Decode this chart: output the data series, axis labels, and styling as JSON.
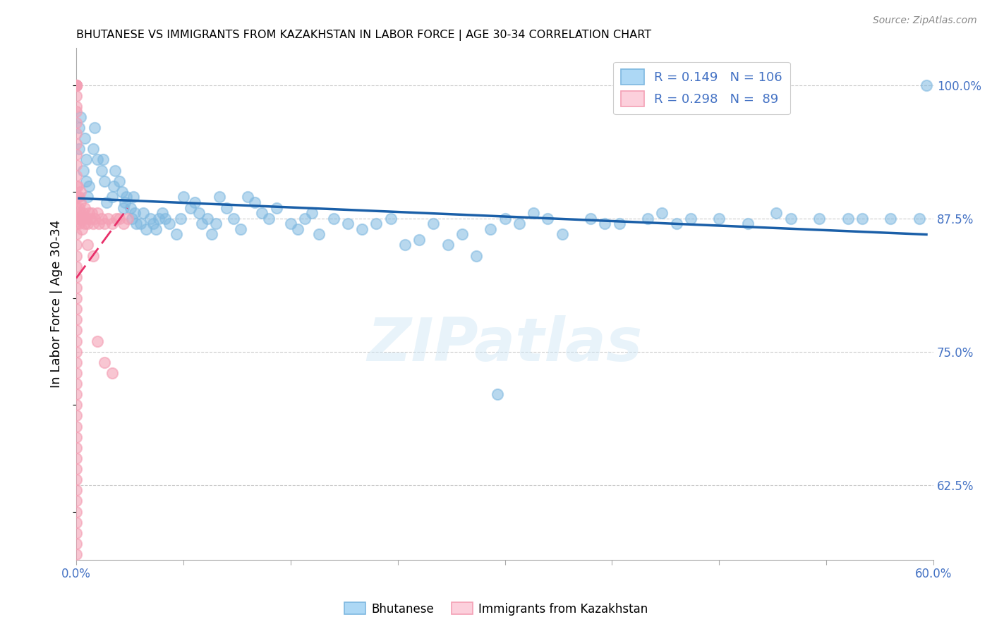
{
  "title": "BHUTANESE VS IMMIGRANTS FROM KAZAKHSTAN IN LABOR FORCE | AGE 30-34 CORRELATION CHART",
  "source": "Source: ZipAtlas.com",
  "ylabel": "In Labor Force | Age 30-34",
  "xlim": [
    0.0,
    0.6
  ],
  "ylim": [
    0.555,
    1.035
  ],
  "xtick_positions": [
    0.0,
    0.075,
    0.15,
    0.225,
    0.3,
    0.375,
    0.45,
    0.525,
    0.6
  ],
  "xticklabels": [
    "0.0%",
    "",
    "",
    "",
    "",
    "",
    "",
    "",
    "60.0%"
  ],
  "yticks_right": [
    1.0,
    0.875,
    0.75,
    0.625
  ],
  "ytick_labels_right": [
    "100.0%",
    "87.5%",
    "75.0%",
    "62.5%"
  ],
  "legend_r1": "R = 0.149",
  "legend_n1": "N = 106",
  "legend_r2": "R = 0.298",
  "legend_n2": "N =  89",
  "blue_color": "#7eb8e0",
  "pink_color": "#f4a0b5",
  "trend_blue": "#1a5fa8",
  "trend_pink": "#e8306a",
  "watermark": "ZIPatlas",
  "bg_color": "#ffffff",
  "grid_color": "#cccccc",
  "axis_label_color": "#4472c4",
  "title_color": "#000000",
  "blue_scatter_x": [
    0.002,
    0.002,
    0.003,
    0.005,
    0.006,
    0.007,
    0.007,
    0.008,
    0.009,
    0.012,
    0.013,
    0.015,
    0.018,
    0.019,
    0.02,
    0.021,
    0.025,
    0.026,
    0.027,
    0.03,
    0.032,
    0.033,
    0.034,
    0.035,
    0.038,
    0.039,
    0.04,
    0.041,
    0.042,
    0.045,
    0.047,
    0.049,
    0.052,
    0.054,
    0.056,
    0.058,
    0.06,
    0.062,
    0.065,
    0.07,
    0.073,
    0.075,
    0.08,
    0.083,
    0.086,
    0.088,
    0.092,
    0.095,
    0.098,
    0.1,
    0.105,
    0.11,
    0.115,
    0.12,
    0.125,
    0.13,
    0.135,
    0.14,
    0.15,
    0.155,
    0.16,
    0.165,
    0.17,
    0.18,
    0.19,
    0.2,
    0.21,
    0.22,
    0.23,
    0.24,
    0.25,
    0.26,
    0.27,
    0.28,
    0.29,
    0.3,
    0.31,
    0.32,
    0.33,
    0.34,
    0.36,
    0.37,
    0.38,
    0.4,
    0.41,
    0.42,
    0.43,
    0.45,
    0.47,
    0.49,
    0.5,
    0.52,
    0.54,
    0.55,
    0.57,
    0.59,
    0.295,
    0.595
  ],
  "blue_scatter_y": [
    0.96,
    0.94,
    0.97,
    0.92,
    0.95,
    0.91,
    0.93,
    0.895,
    0.905,
    0.94,
    0.96,
    0.93,
    0.92,
    0.93,
    0.91,
    0.89,
    0.895,
    0.905,
    0.92,
    0.91,
    0.9,
    0.885,
    0.89,
    0.895,
    0.885,
    0.875,
    0.895,
    0.88,
    0.87,
    0.87,
    0.88,
    0.865,
    0.875,
    0.87,
    0.865,
    0.875,
    0.88,
    0.875,
    0.87,
    0.86,
    0.875,
    0.895,
    0.885,
    0.89,
    0.88,
    0.87,
    0.875,
    0.86,
    0.87,
    0.895,
    0.885,
    0.875,
    0.865,
    0.895,
    0.89,
    0.88,
    0.875,
    0.885,
    0.87,
    0.865,
    0.875,
    0.88,
    0.86,
    0.875,
    0.87,
    0.865,
    0.87,
    0.875,
    0.85,
    0.855,
    0.87,
    0.85,
    0.86,
    0.84,
    0.865,
    0.875,
    0.87,
    0.88,
    0.875,
    0.86,
    0.875,
    0.87,
    0.87,
    0.875,
    0.88,
    0.87,
    0.875,
    0.875,
    0.87,
    0.88,
    0.875,
    0.875,
    0.875,
    0.875,
    0.875,
    0.875,
    0.71,
    1.0
  ],
  "pink_scatter_x": [
    0.0,
    0.0,
    0.0,
    0.0,
    0.0,
    0.0,
    0.0,
    0.0,
    0.0,
    0.0,
    0.0,
    0.0,
    0.0,
    0.0,
    0.0,
    0.0,
    0.0,
    0.0,
    0.0,
    0.0,
    0.0,
    0.0,
    0.0,
    0.0,
    0.0,
    0.0,
    0.0,
    0.0,
    0.0,
    0.0,
    0.0,
    0.0,
    0.0,
    0.0,
    0.0,
    0.0,
    0.0,
    0.0,
    0.0,
    0.0,
    0.0,
    0.0,
    0.0,
    0.0,
    0.0,
    0.0,
    0.0,
    0.0,
    0.0,
    0.0,
    0.001,
    0.001,
    0.002,
    0.002,
    0.002,
    0.002,
    0.003,
    0.003,
    0.003,
    0.004,
    0.004,
    0.005,
    0.005,
    0.006,
    0.006,
    0.007,
    0.008,
    0.009,
    0.01,
    0.011,
    0.012,
    0.013,
    0.015,
    0.016,
    0.018,
    0.02,
    0.022,
    0.025,
    0.028,
    0.03,
    0.033,
    0.036,
    0.015,
    0.02,
    0.008,
    0.012,
    0.025
  ],
  "pink_scatter_y": [
    1.0,
    1.0,
    1.0,
    1.0,
    1.0,
    0.99,
    0.98,
    0.975,
    0.965,
    0.955,
    0.945,
    0.935,
    0.925,
    0.915,
    0.905,
    0.895,
    0.885,
    0.875,
    0.87,
    0.86,
    0.85,
    0.84,
    0.83,
    0.82,
    0.81,
    0.8,
    0.79,
    0.78,
    0.77,
    0.76,
    0.75,
    0.74,
    0.73,
    0.72,
    0.71,
    0.7,
    0.69,
    0.68,
    0.67,
    0.66,
    0.65,
    0.64,
    0.63,
    0.62,
    0.61,
    0.6,
    0.59,
    0.58,
    0.57,
    0.56,
    0.895,
    0.905,
    0.875,
    0.885,
    0.895,
    0.87,
    0.88,
    0.89,
    0.9,
    0.875,
    0.865,
    0.88,
    0.875,
    0.87,
    0.885,
    0.875,
    0.87,
    0.88,
    0.875,
    0.88,
    0.87,
    0.875,
    0.88,
    0.87,
    0.875,
    0.87,
    0.875,
    0.87,
    0.875,
    0.875,
    0.87,
    0.875,
    0.76,
    0.74,
    0.85,
    0.84,
    0.73
  ]
}
